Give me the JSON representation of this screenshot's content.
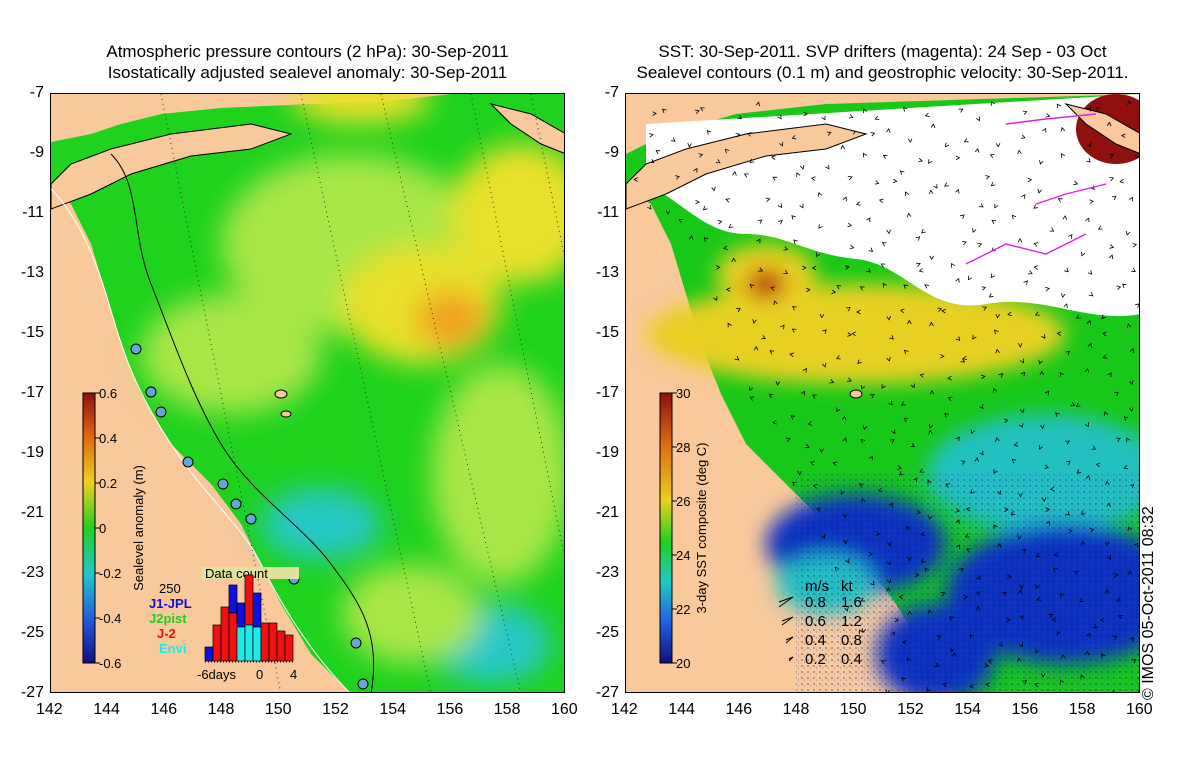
{
  "left_panel": {
    "title_line1": "Atmospheric pressure contours (2 hPa): 30-Sep-2011",
    "title_line2": "Isostatically adjusted sealevel anomaly: 30-Sep-2011",
    "colorbar": {
      "label": "Sealevel anomaly (m)",
      "ticks": [
        "0.6",
        "0.4",
        "0.2",
        "0",
        "-0.2",
        "-0.4",
        "-0.6"
      ]
    },
    "data_count": {
      "title": "Data count",
      "max_label": "250",
      "legend": [
        {
          "name": "J1-JPL",
          "color": "#1010e0"
        },
        {
          "name": "J2pist",
          "color": "#22cc22"
        },
        {
          "name": "J-2",
          "color": "#ee1111"
        },
        {
          "name": "Envi",
          "color": "#22e8e8"
        }
      ],
      "x_ticks": [
        "-6days",
        "0",
        "4"
      ]
    }
  },
  "right_panel": {
    "title_line1": "SST: 30-Sep-2011. SVP drifters (magenta): 24 Sep - 03 Oct",
    "title_line2": "Sealevel contours (0.1 m) and geostrophic velocity: 30-Sep-2011.",
    "colorbar": {
      "label": "3-day SST composite (deg C)",
      "ticks": [
        "30",
        "28",
        "26",
        "24",
        "22",
        "20"
      ]
    },
    "velocity_legend": {
      "header_ms": "m/s",
      "header_kt": "kt",
      "rows": [
        {
          "ms": "0.8",
          "kt": "1.6"
        },
        {
          "ms": "0.6",
          "kt": "1.2"
        },
        {
          "ms": "0.4",
          "kt": "0.8"
        },
        {
          "ms": "0.2",
          "kt": "0.4"
        }
      ]
    }
  },
  "axes": {
    "lat_ticks": [
      "-7",
      "-9",
      "-11",
      "-13",
      "-15",
      "-17",
      "-19",
      "-21",
      "-23",
      "-25",
      "-27"
    ],
    "lon_ticks": [
      "142",
      "144",
      "146",
      "148",
      "150",
      "152",
      "154",
      "156",
      "158",
      "160"
    ]
  },
  "stamp": "© IMOS 05-Oct-2011 08:32",
  "colors": {
    "land": "#f9c89b",
    "anomaly_green": "#1ed21e",
    "anomaly_light": "#a8e646",
    "anomaly_yellow": "#e8e02c",
    "anomaly_orange": "#f0a020",
    "anomaly_cyan": "#28c8c8",
    "sst_blue": "#1030c0",
    "sst_cyan": "#20c0c0",
    "sst_green": "#18c818",
    "sst_yellow": "#e8d020",
    "sst_darkred": "#901010"
  }
}
